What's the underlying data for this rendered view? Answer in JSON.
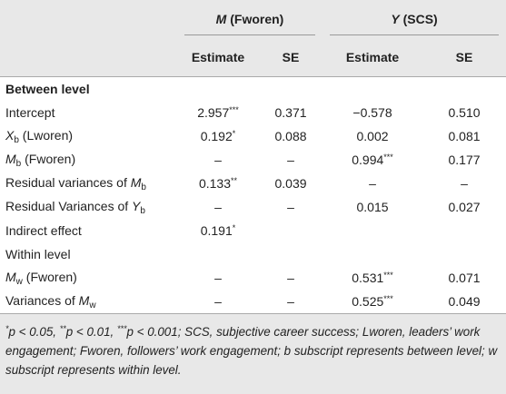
{
  "header": {
    "groups": [
      {
        "var": "M",
        "name": " (Fworen)"
      },
      {
        "var": "Y",
        "name": " (SCS)"
      }
    ],
    "subheaders": [
      "Estimate",
      "SE",
      "Estimate",
      "SE"
    ]
  },
  "rows": [
    {
      "label": [
        "Between level"
      ]
    },
    {
      "label": [
        "Intercept"
      ],
      "cells": [
        {
          "value": "2.957",
          "sig": "***"
        },
        "0.371",
        "−0.578",
        "0.510"
      ]
    },
    {
      "label": [
        "X",
        "b",
        " (Lworen)"
      ],
      "cells": [
        {
          "value": "0.192",
          "sig": "*"
        },
        "0.088",
        "0.002",
        "0.081"
      ]
    },
    {
      "label": [
        "M",
        "b",
        " (Fworen)"
      ],
      "cells": [
        "–",
        "–",
        {
          "value": "0.994",
          "sig": "***"
        },
        "0.177"
      ]
    },
    {
      "label": [
        "Residual variances of ",
        "M",
        "b"
      ],
      "cells": [
        {
          "value": "0.133",
          "sig": "**"
        },
        "0.039",
        "–",
        "–"
      ]
    },
    {
      "label": [
        "Residual Variances of ",
        "Y",
        "b"
      ],
      "cells": [
        "–",
        "–",
        "0.015",
        "0.027"
      ]
    },
    {
      "label": [
        "Indirect effect"
      ],
      "cells": [
        {
          "value": "0.191",
          "sig": "*"
        }
      ]
    },
    {
      "label": [
        "Within level"
      ]
    },
    {
      "label": [
        "M",
        "w",
        " (Fworen)"
      ],
      "cells": [
        "–",
        "–",
        {
          "value": "0.531",
          "sig": "***"
        },
        "0.071"
      ]
    },
    {
      "label": [
        "Variances of ",
        "M",
        "w"
      ],
      "cells": [
        "–",
        "–",
        {
          "value": "0.525",
          "sig": "***"
        },
        "0.049"
      ]
    }
  ],
  "footnote": [
    "*",
    "p < 0.05, ",
    "**",
    "p < 0.01, ",
    "***",
    "p < 0.001; SCS, subjective career success; Lworen, leaders’ work engagement; Fworen, followers’ work engagement; b subscript represents between level; w subscript represents within level."
  ]
}
